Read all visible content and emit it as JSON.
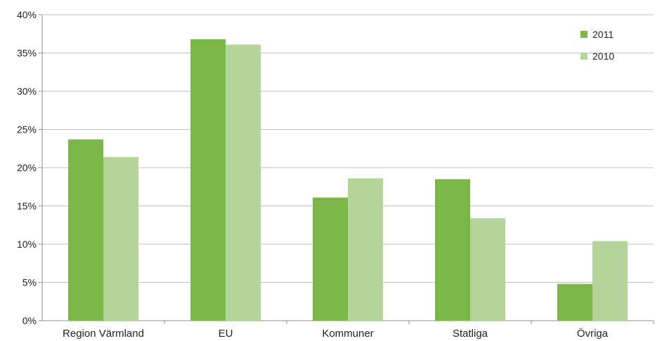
{
  "chart_data": {
    "type": "bar",
    "categories": [
      "Region Värmland",
      "EU",
      "Kommuner",
      "Statliga",
      "Övriga"
    ],
    "series": [
      {
        "name": "2011",
        "color": "#7ab648",
        "values": [
          23.7,
          36.8,
          16.1,
          18.5,
          4.8
        ]
      },
      {
        "name": "2010",
        "color": "#b5d49a",
        "values": [
          21.4,
          36.1,
          18.6,
          13.4,
          10.4
        ]
      }
    ],
    "ylim": [
      0,
      40
    ],
    "yticks": [
      0,
      5,
      10,
      15,
      20,
      25,
      30,
      35,
      40
    ],
    "ytick_labels": [
      "0%",
      "5%",
      "10%",
      "15%",
      "20%",
      "25%",
      "30%",
      "35%",
      "40%"
    ],
    "grid": true,
    "legend_position": "top-right",
    "title": "",
    "xlabel": "",
    "ylabel": ""
  }
}
